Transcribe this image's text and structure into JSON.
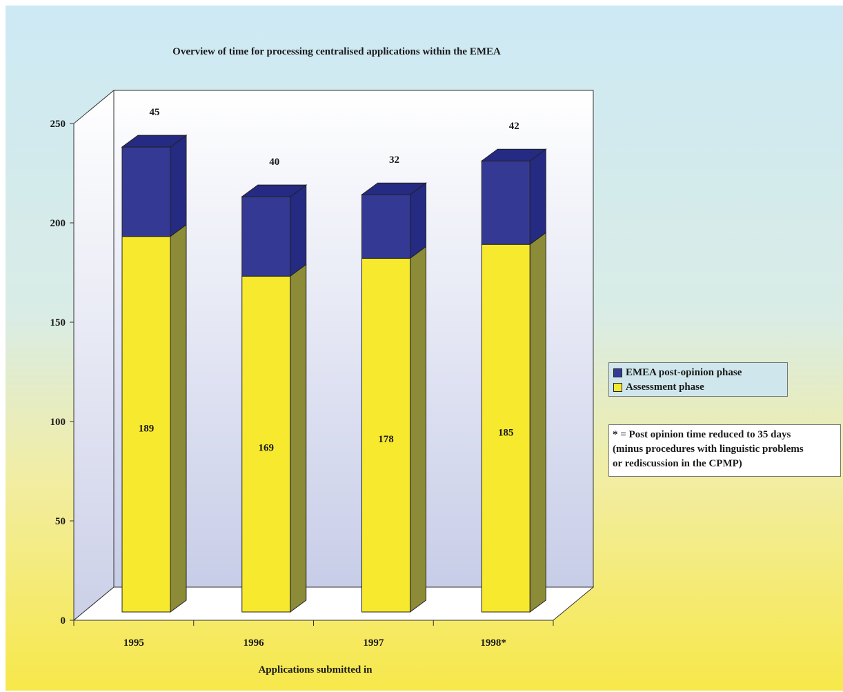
{
  "chart_data": {
    "type": "bar",
    "stacked": true,
    "three_d": true,
    "title": "Overview of time for processing centralised applications within the EMEA",
    "xlabel": "Applications submitted in",
    "ylabel": "",
    "categories": [
      "1995",
      "1996",
      "1997",
      "1998*"
    ],
    "series": [
      {
        "name": "Assessment phase",
        "values": [
          189,
          169,
          178,
          185
        ],
        "color": "#f7e92e",
        "side_color": "#8c8c38"
      },
      {
        "name": "EMEA post-opinion phase",
        "values": [
          45,
          40,
          32,
          42
        ],
        "color": "#343a93",
        "side_color": "#252a82"
      }
    ],
    "ylim": [
      0,
      250
    ],
    "yticks": [
      "0",
      "50",
      "100",
      "150",
      "200",
      "250"
    ],
    "legend_position": "right",
    "grid": false
  },
  "legend": {
    "items": [
      {
        "label": "EMEA post-opinion phase",
        "color": "#343a93"
      },
      {
        "label": "Assessment phase",
        "color": "#f7e92e"
      }
    ]
  },
  "note": {
    "lines": [
      "* = Post opinion time reduced to 35 days",
      "(minus procedures with linguistic problems",
      "or rediscussion in the CPMP)"
    ]
  }
}
